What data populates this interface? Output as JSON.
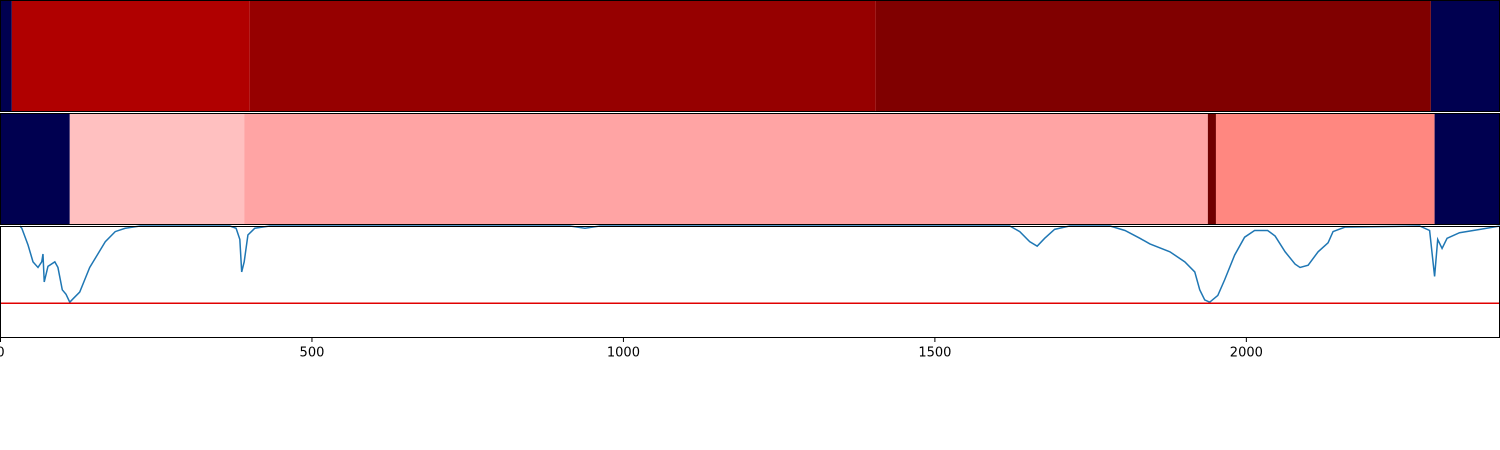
{
  "chart_data": [
    {
      "type": "strip",
      "xlim": [
        0,
        2408
      ],
      "segments": [
        {
          "start": 0,
          "end": 19,
          "color": "#000050"
        },
        {
          "start": 19,
          "end": 401,
          "color": "#b00000"
        },
        {
          "start": 401,
          "end": 1406,
          "color": "#960000"
        },
        {
          "start": 1406,
          "end": 2297,
          "color": "#800000"
        },
        {
          "start": 2297,
          "end": 2408,
          "color": "#000050"
        }
      ]
    },
    {
      "type": "strip",
      "xlim": [
        0,
        2408
      ],
      "segments": [
        {
          "start": 0,
          "end": 112,
          "color": "#000050"
        },
        {
          "start": 112,
          "end": 392,
          "color": "#ffc0c0"
        },
        {
          "start": 392,
          "end": 1939,
          "color": "#ffa4a4"
        },
        {
          "start": 1939,
          "end": 1952,
          "color": "#700000"
        },
        {
          "start": 1952,
          "end": 2303,
          "color": "#ff8780"
        },
        {
          "start": 2303,
          "end": 2408,
          "color": "#000050"
        }
      ]
    },
    {
      "type": "line",
      "xlim": [
        0,
        2408
      ],
      "ylim": [
        0,
        1
      ],
      "color": "#1f77b4",
      "hline": {
        "value": 0.31,
        "color": "#e00000"
      },
      "xticks": [
        0,
        500,
        1000,
        1500,
        2000
      ],
      "x": [
        32,
        35,
        45,
        53,
        61,
        67,
        69,
        71,
        77,
        88,
        93,
        100,
        106,
        112,
        119,
        128,
        136,
        144,
        156,
        169,
        185,
        201,
        225,
        369,
        379,
        385,
        388,
        392,
        398,
        409,
        433,
        915,
        939,
        963,
        1621,
        1637,
        1653,
        1665,
        1677,
        1693,
        1717,
        1782,
        1806,
        1830,
        1846,
        1878,
        1902,
        1918,
        1926,
        1934,
        1942,
        1955,
        1966,
        1982,
        1998,
        2014,
        2035,
        2047,
        2063,
        2079,
        2087,
        2100,
        2116,
        2132,
        2140,
        2159,
        2279,
        2295,
        2303,
        2308,
        2315,
        2323,
        2343,
        2376,
        2408
      ],
      "values": [
        1.0,
        0.98,
        0.83,
        0.68,
        0.63,
        0.68,
        0.75,
        0.5,
        0.64,
        0.68,
        0.63,
        0.43,
        0.39,
        0.32,
        0.36,
        0.41,
        0.52,
        0.63,
        0.74,
        0.86,
        0.95,
        0.98,
        1.0,
        1.0,
        0.98,
        0.88,
        0.59,
        0.68,
        0.92,
        0.98,
        1.0,
        1.0,
        0.98,
        1.0,
        1.0,
        0.95,
        0.86,
        0.82,
        0.89,
        0.97,
        1.0,
        1.0,
        0.96,
        0.89,
        0.84,
        0.77,
        0.68,
        0.59,
        0.43,
        0.34,
        0.32,
        0.38,
        0.52,
        0.74,
        0.9,
        0.96,
        0.96,
        0.91,
        0.77,
        0.66,
        0.63,
        0.65,
        0.77,
        0.85,
        0.95,
        0.99,
        1.0,
        0.96,
        0.55,
        0.88,
        0.8,
        0.89,
        0.94,
        0.97,
        1.0
      ]
    }
  ]
}
